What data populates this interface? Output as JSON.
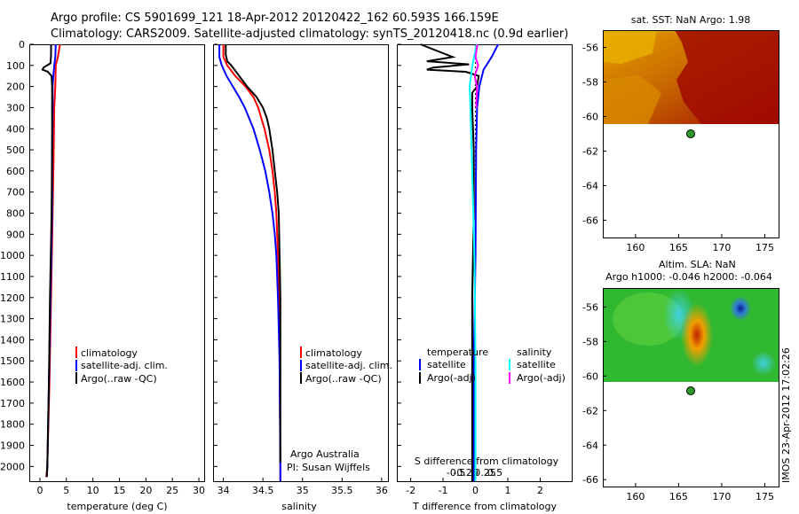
{
  "title_line1": "Argo profile: CS 5901699_121 18-Apr-2012 20120422_162 60.593S 166.159E",
  "title_line2": "Climatology: CARS2009. Satellite-adjusted climatology: synTS_20120418.nc (0.9d earlier)",
  "depth_ticks": [
    "0",
    "100",
    "200",
    "300",
    "400",
    "500",
    "600",
    "700",
    "800",
    "900",
    "1000",
    "1100",
    "1200",
    "1300",
    "1400",
    "1500",
    "1600",
    "1700",
    "1800",
    "1900",
    "2000"
  ],
  "colors": {
    "climatology": "#ff0000",
    "satellite": "#0000ff",
    "argo": "#000000",
    "salinity_sat": "#00ffff",
    "salinity_argo": "#ff00ff",
    "dot": "#2a9a2a"
  },
  "legend1": {
    "climatology": "climatology",
    "satellite": "satellite-adj. clim.",
    "argo": "Argo(..raw -QC)"
  },
  "legend3": {
    "temperature": "temperature",
    "salinity": "salinity",
    "satellite": "satellite",
    "argo": "Argo(-adj)"
  },
  "credit": {
    "line1": "Argo Australia",
    "line2": "PI: Susan Wijffels"
  },
  "sst_title": "sat. SST: NaN Argo: 1.98",
  "sla_title1": "Altim. SLA: NaN",
  "sla_title2": "Argo h1000: -0.046 h2000: -0.064",
  "side_stamp": "IMOS 23-Apr-2012 17:02:26",
  "map_lat_ticks": [
    "-56",
    "-58",
    "-60",
    "-62",
    "-64",
    "-66"
  ],
  "map_lon_ticks": [
    "160",
    "165",
    "170",
    "175"
  ],
  "chart_data": [
    {
      "type": "line",
      "xlabel": "temperature (deg C)",
      "ylabel": "",
      "xlim": [
        -2,
        31
      ],
      "ylim": [
        2070,
        0
      ],
      "xticks": [
        "0",
        "5",
        "10",
        "15",
        "20",
        "25",
        "30"
      ],
      "series": [
        {
          "name": "climatology",
          "depth": [
            0,
            60,
            100,
            200,
            300,
            500,
            800,
            1200,
            1600,
            2000,
            2050
          ],
          "values": [
            3.8,
            3.4,
            3.0,
            2.9,
            2.7,
            2.6,
            2.4,
            2.1,
            1.8,
            1.4,
            1.2
          ]
        },
        {
          "name": "satellite-adj. clim.",
          "depth": [
            0,
            60,
            100,
            160,
            200,
            300,
            500,
            800,
            1200,
            1600,
            2000,
            2050
          ],
          "values": [
            3.0,
            2.9,
            2.7,
            2.5,
            2.4,
            2.4,
            2.3,
            2.3,
            2.0,
            1.7,
            1.4,
            1.3
          ]
        },
        {
          "name": "Argo(..raw -QC)",
          "depth": [
            0,
            50,
            90,
            110,
            120,
            130,
            150,
            200,
            300,
            500,
            800,
            1200,
            1600,
            2000,
            2050
          ],
          "values": [
            2.1,
            2.1,
            2.0,
            0.7,
            0.5,
            1.5,
            2.2,
            2.3,
            2.3,
            2.3,
            2.2,
            1.9,
            1.7,
            1.4,
            1.3
          ]
        }
      ]
    },
    {
      "type": "line",
      "xlabel": "salinity",
      "ylabel": "",
      "xlim": [
        33.87,
        36.08
      ],
      "ylim": [
        2070,
        0
      ],
      "xticks": [
        "34",
        "34.5",
        "35",
        "35.5",
        "36"
      ],
      "series": [
        {
          "name": "climatology",
          "depth": [
            0,
            60,
            100,
            150,
            200,
            250,
            300,
            400,
            500,
            600,
            700,
            800,
            1000,
            1200,
            1500,
            2000,
            2070
          ],
          "values": [
            34.0,
            34.0,
            34.05,
            34.15,
            34.28,
            34.38,
            34.44,
            34.52,
            34.58,
            34.62,
            34.65,
            34.67,
            34.69,
            34.7,
            34.71,
            34.72,
            34.72
          ]
        },
        {
          "name": "satellite-adj. clim.",
          "depth": [
            0,
            60,
            100,
            150,
            200,
            250,
            300,
            400,
            500,
            600,
            700,
            800,
            900,
            1000,
            1200,
            1500,
            2000,
            2070
          ],
          "values": [
            33.95,
            33.95,
            33.98,
            34.04,
            34.12,
            34.2,
            34.27,
            34.38,
            34.46,
            34.53,
            34.58,
            34.62,
            34.65,
            34.67,
            34.69,
            34.71,
            34.72,
            34.72
          ]
        },
        {
          "name": "Argo(..raw -QC)",
          "depth": [
            0,
            50,
            80,
            100,
            150,
            200,
            250,
            300,
            350,
            400,
            500,
            600,
            700,
            800,
            1000,
            1200,
            1500,
            1900,
            1980
          ],
          "values": [
            34.03,
            34.03,
            34.05,
            34.1,
            34.2,
            34.3,
            34.42,
            34.5,
            34.55,
            34.58,
            34.62,
            34.65,
            34.68,
            34.7,
            34.71,
            34.72,
            34.72,
            34.72,
            34.72
          ]
        }
      ]
    },
    {
      "type": "line",
      "xlabel": "T difference from climatology",
      "xlabel2": "S difference from climatology",
      "xlim": [
        -2.4,
        3.0
      ],
      "x2lim": [
        -0.6,
        0.75
      ],
      "ylim": [
        2070,
        0
      ],
      "xticks": [
        "-2",
        "-1",
        "0",
        "1",
        "2"
      ],
      "x2ticks": [
        "-0.5",
        "-0.25",
        "0",
        "0.25",
        "0.5"
      ],
      "series": [
        {
          "name": "temperature satellite",
          "depth": [
            0,
            60,
            120,
            200,
            300,
            500,
            1000,
            1500,
            2000,
            2070
          ],
          "values": [
            0.7,
            0.5,
            0.25,
            0.12,
            0.05,
            0.02,
            0.0,
            -0.05,
            -0.05,
            -0.05
          ]
        },
        {
          "name": "temperature Argo(-adj)",
          "depth": [
            0,
            60,
            80,
            95,
            110,
            120,
            130,
            150,
            200,
            230,
            300,
            500,
            800,
            1200,
            1600,
            2000,
            2070
          ],
          "values": [
            -1.7,
            -0.7,
            -1.5,
            -0.2,
            -1.3,
            -1.5,
            -0.3,
            0.1,
            0.05,
            -0.1,
            -0.1,
            -0.05,
            -0.05,
            -0.1,
            -0.1,
            -0.1,
            -0.1
          ]
        },
        {
          "name": "salinity satellite",
          "depth": [
            0,
            100,
            200,
            300,
            500,
            700,
            900,
            1100,
            1300,
            1500,
            2000,
            2070
          ],
          "values": [
            0.03,
            -0.08,
            -0.15,
            -0.13,
            -0.1,
            -0.07,
            -0.04,
            -0.02,
            -0.01,
            0.0,
            0.0,
            0.0
          ]
        },
        {
          "name": "salinity Argo(-adj)",
          "depth": [
            0,
            60,
            100,
            150,
            200,
            250,
            300
          ],
          "values": [
            0.05,
            0.0,
            0.07,
            -0.02,
            0.04,
            0.03,
            0.02
          ]
        }
      ]
    }
  ]
}
